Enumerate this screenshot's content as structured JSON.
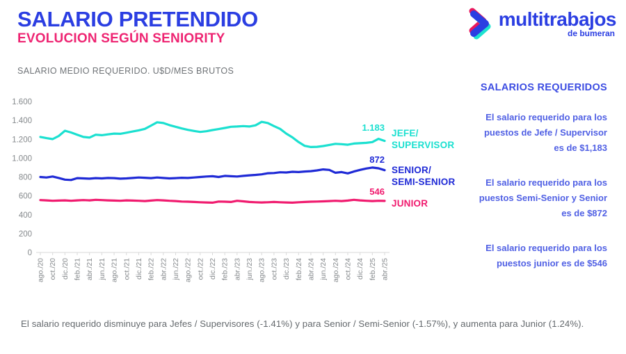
{
  "header": {
    "title": "SALARIO PRETENDIDO",
    "subtitle": "EVOLUCION SEGÚN SENIORITY",
    "chart_caption": "SALARIO MEDIO REQUERIDO. U$D/MES BRUTOS"
  },
  "logo": {
    "name": "multitrabajos",
    "tagline": "de bumeran",
    "colors": {
      "blue": "#2b3ee2",
      "magenta": "#e8175d",
      "cyan": "#1de3d0"
    }
  },
  "chart_data": {
    "type": "line",
    "title": "SALARIO MEDIO REQUERIDO. U$D/MES BRUTOS",
    "ylim": [
      0,
      1600
    ],
    "grid": false,
    "legend_position": "right",
    "y_ticks": [
      {
        "value": 0,
        "label": "0"
      },
      {
        "value": 200,
        "label": "200"
      },
      {
        "value": 400,
        "label": "400"
      },
      {
        "value": 600,
        "label": "600"
      },
      {
        "value": 800,
        "label": "800"
      },
      {
        "value": 1000,
        "label": "1.000"
      },
      {
        "value": 1200,
        "label": "1.200"
      },
      {
        "value": 1400,
        "label": "1.400"
      },
      {
        "value": 1600,
        "label": "1.600"
      }
    ],
    "x_tick_labels": [
      "ago./20",
      "oct./20",
      "dic./20",
      "feb./21",
      "abr./21",
      "jun./21",
      "ago./21",
      "oct./21",
      "dic./21",
      "feb./22",
      "abr./22",
      "jun./22",
      "ago./22",
      "oct./22",
      "dic./22",
      "feb./23",
      "abr./23",
      "jun./23",
      "ago./23",
      "oct./23",
      "dic./23",
      "feb./24",
      "abr./24",
      "jun./24",
      "ago./24",
      "oct./24",
      "dic./24",
      "feb./25",
      "abr./25"
    ],
    "points_per_tick": 2,
    "series": [
      {
        "name": "JEFE/SUPERVISOR",
        "color": "#1be0d0",
        "end_value_label": "1.183",
        "values": [
          1225,
          1212,
          1202,
          1235,
          1290,
          1272,
          1248,
          1225,
          1218,
          1248,
          1243,
          1252,
          1260,
          1258,
          1270,
          1282,
          1295,
          1310,
          1345,
          1380,
          1372,
          1350,
          1332,
          1315,
          1300,
          1288,
          1278,
          1285,
          1298,
          1308,
          1320,
          1332,
          1335,
          1340,
          1335,
          1348,
          1385,
          1372,
          1340,
          1310,
          1260,
          1220,
          1170,
          1130,
          1118,
          1120,
          1128,
          1140,
          1152,
          1148,
          1142,
          1155,
          1158,
          1162,
          1170,
          1205,
          1183
        ]
      },
      {
        "name": "SENIOR/SEMI-SENIOR",
        "color": "#1f2ad6",
        "end_value_label": "872",
        "values": [
          800,
          795,
          805,
          790,
          772,
          768,
          788,
          785,
          782,
          788,
          785,
          790,
          788,
          782,
          785,
          790,
          795,
          792,
          788,
          795,
          790,
          785,
          788,
          792,
          790,
          795,
          800,
          805,
          808,
          800,
          812,
          808,
          805,
          812,
          818,
          822,
          828,
          840,
          842,
          850,
          848,
          855,
          852,
          858,
          862,
          870,
          880,
          875,
          845,
          852,
          838,
          858,
          875,
          890,
          900,
          892,
          872
        ]
      },
      {
        "name": "JUNIOR",
        "color": "#f01a6e",
        "end_value_label": "546",
        "values": [
          555,
          552,
          548,
          550,
          552,
          548,
          552,
          555,
          552,
          558,
          555,
          552,
          550,
          548,
          552,
          550,
          548,
          545,
          550,
          555,
          552,
          548,
          545,
          540,
          538,
          535,
          532,
          530,
          528,
          540,
          538,
          535,
          548,
          542,
          535,
          532,
          530,
          532,
          535,
          532,
          530,
          528,
          532,
          535,
          538,
          540,
          542,
          545,
          548,
          545,
          550,
          558,
          552,
          548,
          545,
          548,
          546
        ]
      }
    ]
  },
  "legend": {
    "jefe": {
      "value": "1.183",
      "line1": "JEFE/",
      "line2": "SUPERVISOR"
    },
    "senior": {
      "value": "872",
      "line1": "SENIOR/",
      "line2": "SEMI-SENIOR"
    },
    "junior": {
      "value": "546",
      "line1": "JUNIOR"
    }
  },
  "side_panel": {
    "heading": "SALARIOS REQUERIDOS",
    "paragraphs": [
      {
        "lines": [
          "El salario requerido para los",
          "puestos de Jefe / Supervisor",
          "es de $1,183"
        ]
      },
      {
        "lines": [
          "El salario requerido para los",
          "puestos Semi-Senior y Senior",
          "es de $872"
        ]
      },
      {
        "lines": [
          "El salario requerido para los",
          "puestos junior es de $546"
        ]
      }
    ]
  },
  "footnote": "El salario requerido disminuye para Jefes / Supervisores (-1.41%) y para Senior / Semi-Senior (-1.57%), y aumenta para Junior (1.24%)."
}
